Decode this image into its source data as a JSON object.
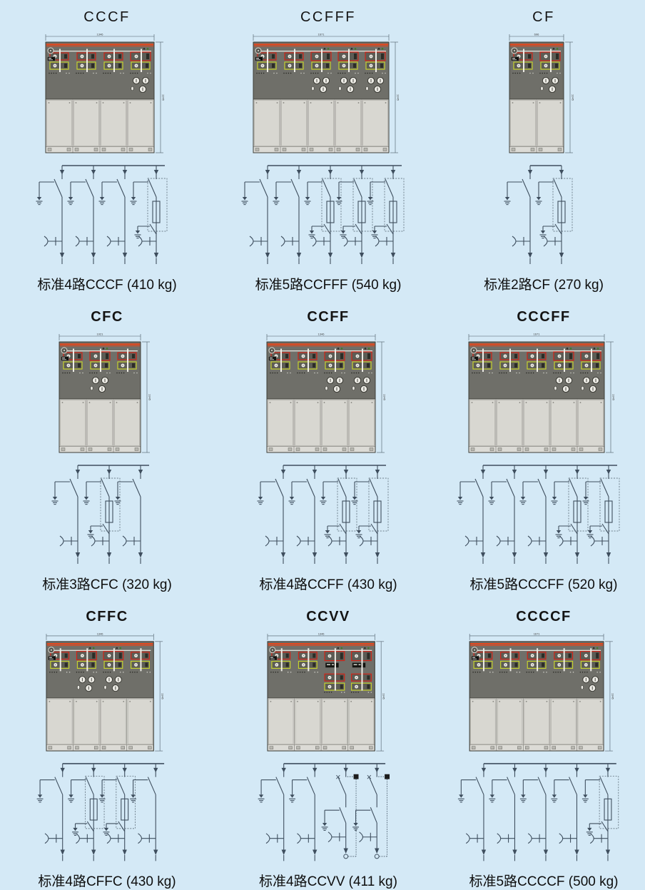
{
  "colors": {
    "background": "#d4e9f6",
    "line": "#3e4e5e",
    "panel_dark": "#6f6f69",
    "panel_border": "#3e3e38",
    "door": "#dcdbd6",
    "door_inner": "#d8d7d1",
    "door_seam": "#8b8a84",
    "accent_orange": "#e0481f",
    "box_red": "#d22417",
    "box_yellow": "#c6d22e",
    "box_fill": "#5c5c55",
    "white_detail": "#efede7",
    "dim_line": "#4a5a66",
    "dim_text": "#3a3a3a",
    "breaker_black": "#1c1c1c",
    "text": "#141414"
  },
  "grid": {
    "columns": 3,
    "rows": 3
  },
  "units": [
    {
      "title": "CCCF",
      "panels": "CCCF",
      "caption": "标准4路CCCF (410 kg)",
      "width_label": "1346",
      "height_label": "1345"
    },
    {
      "title": "CCFFF",
      "panels": "CCFFF",
      "caption": "标准5路CCFFF (540 kg)",
      "width_label": "1671",
      "height_label": "1345"
    },
    {
      "title": "CF",
      "panels": "CF",
      "caption": "标准2路CF (270 kg)",
      "width_label": "696",
      "height_label": "1345"
    },
    {
      "title": "CFC",
      "panels": "CFC",
      "caption": "标准3路CFC (320 kg)",
      "width_label": "1021",
      "height_label": "1345"
    },
    {
      "title": "CCFF",
      "panels": "CCFF",
      "caption": "标准4路CCFF (430 kg)",
      "width_label": "1346",
      "height_label": "1345"
    },
    {
      "title": "CCCFF",
      "panels": "CCCFF",
      "caption": "标准5路CCCFF (520 kg)",
      "width_label": "1671",
      "height_label": "1345"
    },
    {
      "title": "CFFC",
      "panels": "CFFC",
      "caption": "标准4路CFFC (430 kg)",
      "width_label": "1346",
      "height_label": "1345"
    },
    {
      "title": "CCVV",
      "panels": "CCVV",
      "caption": "标准4路CCVV (411 kg)",
      "width_label": "1346",
      "height_label": "1345"
    },
    {
      "title": "CCCCF",
      "panels": "CCCCF",
      "caption": "标准5路CCCCF (500 kg)",
      "width_label": "1671",
      "height_label": "1345"
    }
  ]
}
